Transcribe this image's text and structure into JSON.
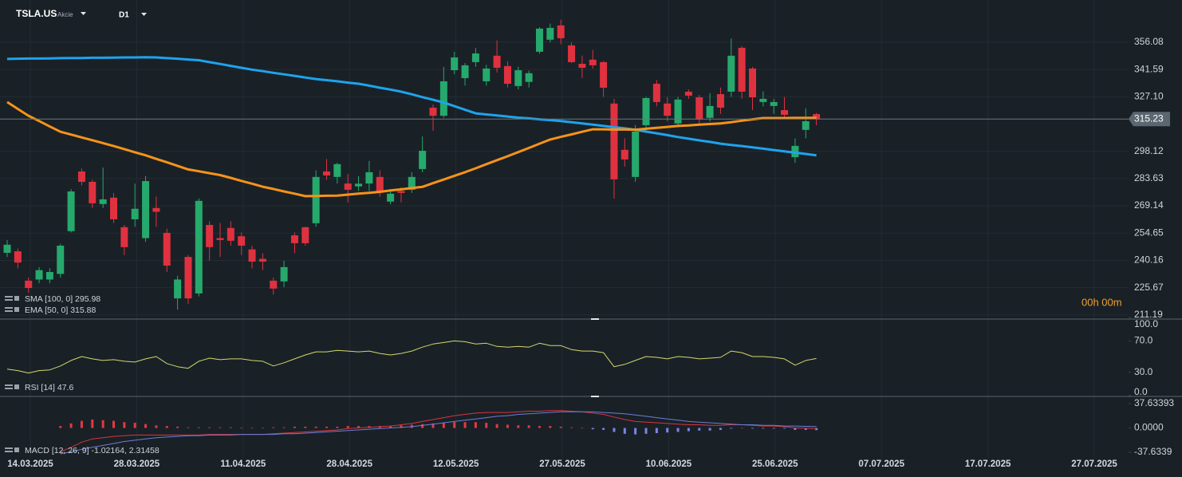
{
  "header": {
    "symbol": "TSLA.US",
    "kind": "Akcie",
    "timeframe": "D1"
  },
  "countdown": "00h 00m",
  "dates": [
    "14.03.2025",
    "28.03.2025",
    "11.04.2025",
    "28.04.2025",
    "12.05.2025",
    "27.05.2025",
    "10.06.2025",
    "25.06.2025",
    "07.07.2025",
    "17.07.2025",
    "27.07.2025"
  ],
  "chart_data": [
    {
      "type": "candlestick",
      "up_color": "#26a96c",
      "down_color": "#e0313f",
      "ylim": [
        209.0,
        378.5
      ],
      "yticks": [
        356.08,
        341.59,
        {
          "value": 327.1,
          "label": "327.10"
        },
        298.12,
        283.63,
        269.14,
        254.65,
        240.16,
        225.67,
        211.19
      ],
      "last": 315.23,
      "open": [
        244.2,
        245,
        229.4,
        230,
        230,
        233,
        255.7,
        287.4,
        281.9,
        270.1,
        273.5,
        257.8,
        262,
        252,
        268,
        254.8,
        220,
        242,
        222.6,
        259,
        252,
        257.4,
        253,
        246,
        241,
        229.4,
        229,
        253.5,
        257.8,
        259.9,
        287.4,
        284.5,
        281,
        279.5,
        281,
        284.5,
        271.4,
        277,
        277.7,
        288.7,
        321.3,
        317,
        341.2,
        337,
        345.5,
        335.3,
        348.9,
        343.4,
        332.8,
        335,
        351,
        357.4,
        365,
        354.4,
        344.6,
        346.8,
        345.5,
        323.5,
        298.9,
        284.5,
        312,
        334,
        323.5,
        312.9,
        329.8,
        326.8,
        315.9,
        328.5,
        329.8,
        353.1,
        342.1,
        324.3,
        322.2,
        320,
        295,
        309.5,
        317.9
      ],
      "high": [
        251,
        246.5,
        231,
        236.6,
        236,
        249,
        278,
        289,
        283,
        289.5,
        276,
        259,
        281,
        285,
        274,
        257,
        232,
        243,
        273,
        261,
        260,
        261,
        255,
        248,
        244,
        231,
        240,
        255,
        258,
        288,
        294,
        292,
        286,
        285,
        293,
        288,
        277,
        279,
        287,
        306,
        323,
        343,
        351,
        345,
        353,
        344,
        357,
        346,
        343,
        341,
        364,
        366,
        368,
        356,
        349,
        352,
        346,
        326,
        305,
        312,
        327,
        336,
        327,
        327,
        331,
        328,
        329,
        332,
        358,
        354,
        343,
        330,
        326,
        327,
        305,
        321,
        318.5
      ],
      "low": [
        242,
        236,
        223,
        228,
        228,
        231,
        255,
        280,
        268,
        268,
        260,
        243,
        258,
        250,
        258,
        234,
        214,
        217,
        221,
        240,
        242,
        248,
        243,
        236,
        235,
        222,
        226,
        244,
        248,
        258,
        283,
        281,
        271,
        277,
        277,
        274,
        270,
        271,
        276,
        287,
        309,
        316,
        339,
        333,
        343,
        333,
        340,
        332,
        331,
        332,
        350,
        356,
        355,
        345,
        337,
        342,
        327,
        273,
        290,
        282,
        309,
        322,
        314,
        311,
        326,
        313,
        314,
        318,
        327,
        326,
        320,
        322,
        318,
        316,
        292,
        305,
        312
      ],
      "close": [
        248.5,
        239,
        225.5,
        235,
        234,
        248,
        276.8,
        281.9,
        270.5,
        272.6,
        262,
        247.2,
        267.6,
        282.3,
        266,
        237.4,
        230,
        220,
        271.8,
        247.2,
        251,
        250.6,
        248,
        239.5,
        239.5,
        225.2,
        236.6,
        249.3,
        249.3,
        284.5,
        285.3,
        291.3,
        277.7,
        280.9,
        287,
        276.8,
        275.6,
        276,
        284.5,
        298.4,
        317,
        335.3,
        348,
        343.8,
        350.1,
        342.1,
        342.5,
        334,
        341.2,
        339.6,
        363.3,
        363.7,
        358.2,
        345.5,
        342.5,
        343.8,
        331.9,
        283.2,
        293.8,
        308.6,
        326.4,
        324.3,
        317,
        325.6,
        327.7,
        315,
        322.2,
        321.3,
        348.9,
        329.8,
        326.8,
        326,
        324.3,
        317.5,
        301,
        314.1,
        315.23
      ],
      "series": [
        {
          "name": "SMA [100, 0] 295.98",
          "color": "#1fa3ec",
          "values": [
            347.2,
            347.3,
            347.4,
            347.4,
            347.5,
            347.6,
            347.7,
            347.7,
            347.8,
            347.8,
            347.9,
            348.0,
            348.0,
            348.1,
            348.0,
            347.6,
            347.3,
            346.9,
            346.5,
            345.5,
            344.5,
            343.5,
            342.5,
            341.5,
            340.7,
            339.8,
            339.0,
            338.2,
            337.3,
            336.5,
            335.9,
            335.3,
            334.6,
            334.0,
            333.0,
            331.9,
            330.9,
            329.8,
            328.4,
            326.9,
            325.5,
            324.0,
            322.1,
            320.2,
            318.3,
            317.7,
            317.2,
            316.6,
            316.0,
            315.6,
            315.1,
            314.7,
            314.2,
            313.6,
            312.9,
            312.3,
            311.6,
            310.9,
            310.3,
            309.6,
            308.6,
            307.7,
            306.7,
            305.7,
            304.8,
            303.9,
            303.1,
            302.2,
            301.5,
            300.9,
            300.2,
            299.5,
            298.8,
            298.1,
            297.4,
            296.7,
            295.98
          ]
        },
        {
          "name": "EMA [50, 0] 315.88",
          "color": "#f7931a",
          "values": [
            324.3,
            320.6,
            317.0,
            314.2,
            311.3,
            308.5,
            307.0,
            305.5,
            304.0,
            302.5,
            300.9,
            299.3,
            297.6,
            296.0,
            294.1,
            292.3,
            290.4,
            288.5,
            287.5,
            286.5,
            285.5,
            284.0,
            282.4,
            280.9,
            279.3,
            278.1,
            276.8,
            275.6,
            274.3,
            274.4,
            274.5,
            274.6,
            275.1,
            275.6,
            276.1,
            276.6,
            277.3,
            277.9,
            278.6,
            279.2,
            281.2,
            283.1,
            285.1,
            287.0,
            289.1,
            291.3,
            293.4,
            295.5,
            297.7,
            299.9,
            302.2,
            304.4,
            305.8,
            307.1,
            308.5,
            309.8,
            309.8,
            309.7,
            309.7,
            309.6,
            310.1,
            310.6,
            311.1,
            311.6,
            311.9,
            312.3,
            312.6,
            312.9,
            313.6,
            314.4,
            315.1,
            315.8,
            315.8,
            315.8,
            315.9,
            315.9,
            315.88
          ]
        }
      ]
    },
    {
      "type": "line",
      "ylim": [
        0,
        100
      ],
      "yticks": [
        {
          "value": 100,
          "label": "100.0"
        },
        {
          "value": 70,
          "label": "70.0"
        },
        {
          "value": 30,
          "label": "30.0"
        },
        {
          "value": 0,
          "label": "0.0"
        }
      ],
      "series": [
        {
          "name": "RSI [14] 47.6",
          "color": "#d6d66a",
          "values": [
            34,
            32,
            29,
            32,
            33,
            38,
            45,
            50,
            47,
            45,
            46,
            44,
            43,
            47,
            50,
            41,
            37,
            35,
            44,
            48,
            46,
            47,
            47,
            45,
            44,
            38,
            42,
            47,
            52,
            56,
            56,
            58,
            57,
            56,
            57,
            54,
            52,
            54,
            57,
            62,
            66,
            68,
            70,
            69,
            66,
            67,
            63,
            62,
            63,
            62,
            67,
            64,
            64,
            59,
            57,
            57,
            55,
            37,
            40,
            45,
            50,
            49,
            47,
            50,
            49,
            47,
            48,
            49,
            57,
            55,
            50,
            50,
            49,
            47,
            39,
            45,
            47.6
          ]
        }
      ]
    },
    {
      "type": "macd",
      "ylim": [
        -47.5,
        48.8
      ],
      "yticks": [
        37.63393,
        {
          "value": 0,
          "label": "0.0000"
        },
        -37.6339
      ],
      "hist_up_color": "#e53940",
      "hist_down_color": "#7c84ea",
      "histogram": [
        null,
        null,
        null,
        null,
        null,
        3,
        7,
        11,
        13,
        12,
        11,
        9,
        8,
        6,
        4,
        3,
        2,
        1,
        1,
        1,
        1,
        1,
        0.5,
        0.5,
        0.5,
        1,
        1,
        2,
        2,
        2,
        2,
        2,
        3,
        3,
        3,
        3,
        3,
        4,
        5,
        6,
        7,
        8,
        9,
        9,
        9,
        8,
        6,
        5,
        4,
        4,
        3,
        3,
        2,
        1,
        0,
        -2,
        -3,
        -6,
        -9,
        -10,
        -9,
        -8,
        -7,
        -6,
        -5,
        -4,
        -4,
        -3,
        -1,
        0,
        -1,
        -1,
        -1,
        -1,
        -3,
        -3,
        -3.34
      ],
      "series": [
        {
          "name": "MACD [12, 26, 9] -1.02164,  2.31458",
          "color": "#d9343d",
          "values": [
            null,
            null,
            null,
            null,
            null,
            -37,
            -30,
            -22,
            -17,
            -15,
            -13,
            -12,
            -11,
            -11,
            -11,
            -11,
            -11,
            -11,
            -11,
            -10,
            -10,
            -10,
            -10,
            -10,
            -10,
            -9,
            -8,
            -7,
            -6,
            -5,
            -4,
            -3,
            -1,
            0,
            1,
            2,
            3,
            5,
            7,
            10,
            13,
            16,
            19,
            21,
            23,
            24,
            24,
            24,
            25,
            26,
            26,
            27,
            27,
            26,
            25,
            23,
            21,
            17,
            13,
            10,
            9,
            8,
            7,
            6,
            5,
            5,
            4,
            4,
            5,
            5,
            4,
            3,
            3,
            2,
            0,
            -0.5,
            -1.02164
          ]
        },
        {
          "color": "#6f7cd6",
          "values": [
            null,
            null,
            null,
            null,
            null,
            -40,
            -37,
            -33,
            -30,
            -27,
            -24,
            -21,
            -19,
            -17,
            -15,
            -14,
            -13,
            -12,
            -12,
            -11,
            -11,
            -11,
            -10,
            -10,
            -10,
            -10,
            -9,
            -9,
            -8,
            -7,
            -6,
            -5,
            -4,
            -3,
            -2,
            -1,
            0,
            1,
            2,
            4,
            6,
            8,
            10,
            12,
            14,
            16,
            18,
            19,
            21,
            22,
            23,
            24,
            25,
            25,
            25,
            25,
            24,
            23,
            22,
            20,
            18,
            16,
            14,
            12,
            10,
            9,
            8,
            7,
            6,
            5,
            5,
            4,
            4,
            3,
            3,
            2.5,
            2.31458
          ]
        }
      ]
    }
  ]
}
